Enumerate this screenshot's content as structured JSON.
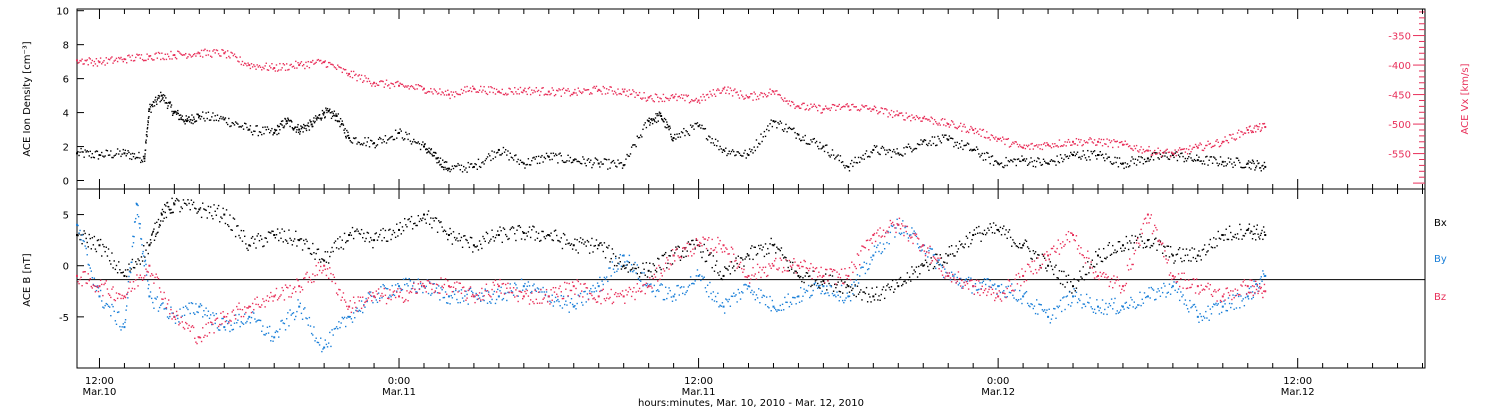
{
  "colors": {
    "black": "#000000",
    "pink": "#e8305a",
    "blue": "#1a7fd8"
  },
  "x_axis": {
    "label": "hours:minutes, Mar. 10, 2010 - Mar. 12, 2010",
    "ticks": [
      {
        "t": 0,
        "time": "12:00",
        "date": "Mar.10"
      },
      {
        "t": 12,
        "time": "0:00",
        "date": "Mar.11"
      },
      {
        "t": 24,
        "time": "12:00",
        "date": "Mar.11"
      },
      {
        "t": 36,
        "time": "0:00",
        "date": "Mar.12"
      },
      {
        "t": 48,
        "time": "12:00",
        "date": "Mar.12"
      }
    ],
    "range_hours": [
      -0.9,
      53.1
    ]
  },
  "chart_data": [
    {
      "type": "scatter",
      "ylabel": "ACE Ion Density [cm⁻³]",
      "y2label": "ACE Vx [km/s]",
      "ylim": [
        -0.5,
        10.1
      ],
      "yticks": [
        "0",
        "2",
        "4",
        "6",
        "8",
        "10"
      ],
      "y2lim": [
        -610,
        -305
      ],
      "y2ticks": [
        "-350",
        "-400",
        "-450",
        "-500",
        "-550"
      ],
      "series": [
        {
          "axis": "left",
          "color": "black",
          "points": [
            [
              -0.9,
              1.6
            ],
            [
              0,
              1.5
            ],
            [
              1,
              1.6
            ],
            [
              1.8,
              1.3
            ],
            [
              2,
              4.2
            ],
            [
              2.5,
              5.0
            ],
            [
              3,
              4.0
            ],
            [
              3.5,
              3.5
            ],
            [
              4,
              3.8
            ],
            [
              5,
              3.6
            ],
            [
              6,
              3.0
            ],
            [
              7,
              2.8
            ],
            [
              7.5,
              3.5
            ],
            [
              8,
              3.0
            ],
            [
              8.5,
              3.3
            ],
            [
              9,
              4.0
            ],
            [
              9.5,
              3.8
            ],
            [
              10,
              2.5
            ],
            [
              11,
              2.2
            ],
            [
              12,
              2.8
            ],
            [
              13,
              2.0
            ],
            [
              13.5,
              1.3
            ],
            [
              14,
              0.7
            ],
            [
              15,
              0.8
            ],
            [
              16,
              1.8
            ],
            [
              17,
              1.0
            ],
            [
              18,
              1.4
            ],
            [
              19,
              1.2
            ],
            [
              20,
              1.0
            ],
            [
              21,
              0.9
            ],
            [
              22,
              3.5
            ],
            [
              22.5,
              3.8
            ],
            [
              23,
              2.5
            ],
            [
              24,
              3.2
            ],
            [
              25,
              1.8
            ],
            [
              26,
              1.5
            ],
            [
              27,
              3.5
            ],
            [
              28,
              2.7
            ],
            [
              29,
              2.0
            ],
            [
              30,
              0.8
            ],
            [
              31,
              1.8
            ],
            [
              32,
              1.6
            ],
            [
              33,
              2.3
            ],
            [
              34,
              2.4
            ],
            [
              35,
              1.8
            ],
            [
              36,
              1.0
            ],
            [
              37,
              1.2
            ],
            [
              38,
              1.0
            ],
            [
              39,
              1.5
            ],
            [
              40,
              1.5
            ],
            [
              41,
              1.0
            ],
            [
              42,
              1.3
            ],
            [
              43,
              1.5
            ],
            [
              44,
              1.2
            ],
            [
              45,
              1.1
            ],
            [
              46,
              1.0
            ],
            [
              46.7,
              0.8
            ]
          ]
        },
        {
          "axis": "right",
          "color": "pink",
          "points": [
            [
              -0.9,
              -392
            ],
            [
              0,
              -395
            ],
            [
              1,
              -390
            ],
            [
              2,
              -385
            ],
            [
              3,
              -383
            ],
            [
              4,
              -380
            ],
            [
              5,
              -380
            ],
            [
              6,
              -400
            ],
            [
              7,
              -405
            ],
            [
              8,
              -400
            ],
            [
              9,
              -395
            ],
            [
              10,
              -415
            ],
            [
              11,
              -430
            ],
            [
              12,
              -435
            ],
            [
              13,
              -440
            ],
            [
              14,
              -450
            ],
            [
              15,
              -440
            ],
            [
              16,
              -445
            ],
            [
              17,
              -443
            ],
            [
              18,
              -445
            ],
            [
              19,
              -447
            ],
            [
              20,
              -442
            ],
            [
              21,
              -445
            ],
            [
              22,
              -455
            ],
            [
              23,
              -455
            ],
            [
              24,
              -460
            ],
            [
              25,
              -440
            ],
            [
              26,
              -455
            ],
            [
              27,
              -445
            ],
            [
              28,
              -470
            ],
            [
              29,
              -475
            ],
            [
              30,
              -470
            ],
            [
              31,
              -475
            ],
            [
              32,
              -485
            ],
            [
              33,
              -490
            ],
            [
              34,
              -500
            ],
            [
              35,
              -510
            ],
            [
              36,
              -525
            ],
            [
              37,
              -540
            ],
            [
              38,
              -535
            ],
            [
              39,
              -530
            ],
            [
              40,
              -530
            ],
            [
              41,
              -535
            ],
            [
              42,
              -545
            ],
            [
              43,
              -550
            ],
            [
              44,
              -540
            ],
            [
              45,
              -530
            ],
            [
              46,
              -510
            ],
            [
              46.7,
              -505
            ]
          ]
        }
      ]
    },
    {
      "type": "scatter",
      "ylabel": "ACE B [nT]",
      "ylim": [
        -10,
        7.5
      ],
      "yticks": [
        "-5",
        "0",
        "5"
      ],
      "legend_position": "right",
      "series": [
        {
          "name": "Bx",
          "color": "black",
          "points": [
            [
              -0.9,
              3
            ],
            [
              0,
              2
            ],
            [
              1,
              -1
            ],
            [
              2,
              2
            ],
            [
              2.5,
              5
            ],
            [
              3,
              6
            ],
            [
              4,
              5.5
            ],
            [
              5,
              5
            ],
            [
              6,
              2
            ],
            [
              7,
              3
            ],
            [
              8,
              2.5
            ],
            [
              9,
              0.5
            ],
            [
              10,
              3
            ],
            [
              11,
              2.5
            ],
            [
              12,
              3.5
            ],
            [
              13,
              5
            ],
            [
              14,
              3
            ],
            [
              15,
              2
            ],
            [
              16,
              3
            ],
            [
              17,
              3.2
            ],
            [
              18,
              3
            ],
            [
              19,
              2
            ],
            [
              20,
              2
            ],
            [
              21,
              0
            ],
            [
              22,
              -0.5
            ],
            [
              23,
              1
            ],
            [
              24,
              2
            ],
            [
              25,
              -1
            ],
            [
              26,
              1
            ],
            [
              27,
              2
            ],
            [
              28,
              -1
            ],
            [
              29,
              -1.5
            ],
            [
              30,
              -2
            ],
            [
              31,
              -3
            ],
            [
              32,
              -2
            ],
            [
              33,
              0
            ],
            [
              34,
              1
            ],
            [
              35,
              3
            ],
            [
              36,
              3.5
            ],
            [
              37,
              2
            ],
            [
              38,
              0
            ],
            [
              39,
              -2
            ],
            [
              40,
              1
            ],
            [
              41,
              2
            ],
            [
              42,
              2.5
            ],
            [
              43,
              1
            ],
            [
              44,
              1
            ],
            [
              45,
              3
            ],
            [
              46,
              3.5
            ],
            [
              46.7,
              3
            ]
          ]
        },
        {
          "name": "By",
          "color": "blue",
          "points": [
            [
              -0.9,
              4
            ],
            [
              0,
              -3
            ],
            [
              1,
              -6
            ],
            [
              1.5,
              6
            ],
            [
              2,
              -3
            ],
            [
              3,
              -5
            ],
            [
              4,
              -4
            ],
            [
              5,
              -6
            ],
            [
              6,
              -5
            ],
            [
              7,
              -7
            ],
            [
              8,
              -4
            ],
            [
              9,
              -8
            ],
            [
              10,
              -5
            ],
            [
              11,
              -3
            ],
            [
              12,
              -2
            ],
            [
              13,
              -2
            ],
            [
              14,
              -3
            ],
            [
              15,
              -3
            ],
            [
              16,
              -3
            ],
            [
              17,
              -2
            ],
            [
              18,
              -3
            ],
            [
              19,
              -4
            ],
            [
              20,
              -2
            ],
            [
              21,
              1
            ],
            [
              22,
              -2
            ],
            [
              23,
              -3
            ],
            [
              24,
              -1
            ],
            [
              25,
              -4
            ],
            [
              26,
              -2
            ],
            [
              27,
              -4
            ],
            [
              28,
              -3
            ],
            [
              29,
              -2
            ],
            [
              30,
              -3
            ],
            [
              31,
              1
            ],
            [
              32,
              4
            ],
            [
              33,
              2
            ],
            [
              34,
              -1
            ],
            [
              35,
              -2
            ],
            [
              36,
              -2
            ],
            [
              37,
              -3
            ],
            [
              38,
              -5
            ],
            [
              39,
              -3
            ],
            [
              40,
              -4
            ],
            [
              41,
              -4
            ],
            [
              42,
              -3
            ],
            [
              43,
              -2
            ],
            [
              44,
              -5
            ],
            [
              45,
              -4
            ],
            [
              46,
              -3
            ],
            [
              46.7,
              -1
            ]
          ]
        },
        {
          "name": "Bz",
          "color": "pink",
          "points": [
            [
              -0.9,
              -1
            ],
            [
              0,
              -2
            ],
            [
              1,
              -3
            ],
            [
              2,
              0
            ],
            [
              3,
              -5
            ],
            [
              4,
              -7
            ],
            [
              5,
              -5
            ],
            [
              6,
              -4
            ],
            [
              7,
              -3
            ],
            [
              8,
              -2
            ],
            [
              9,
              0
            ],
            [
              10,
              -4
            ],
            [
              11,
              -3
            ],
            [
              12,
              -3
            ],
            [
              13,
              -2
            ],
            [
              14,
              -2
            ],
            [
              15,
              -3
            ],
            [
              16,
              -2
            ],
            [
              17,
              -3
            ],
            [
              18,
              -3
            ],
            [
              19,
              -2
            ],
            [
              20,
              -3
            ],
            [
              21,
              -3
            ],
            [
              22,
              -2
            ],
            [
              23,
              1
            ],
            [
              24,
              2
            ],
            [
              25,
              2
            ],
            [
              26,
              -1
            ],
            [
              27,
              0
            ],
            [
              28,
              0
            ],
            [
              29,
              -1
            ],
            [
              30,
              -1
            ],
            [
              31,
              3
            ],
            [
              32,
              4
            ],
            [
              33,
              2
            ],
            [
              34,
              -1
            ],
            [
              35,
              -2
            ],
            [
              36,
              -3
            ],
            [
              37,
              -1
            ],
            [
              38,
              1
            ],
            [
              39,
              3
            ],
            [
              40,
              -1
            ],
            [
              41,
              -2
            ],
            [
              42,
              5
            ],
            [
              43,
              -1
            ],
            [
              44,
              -2
            ],
            [
              45,
              -3
            ],
            [
              46,
              -2
            ],
            [
              46.7,
              -2.5
            ]
          ]
        }
      ]
    }
  ]
}
